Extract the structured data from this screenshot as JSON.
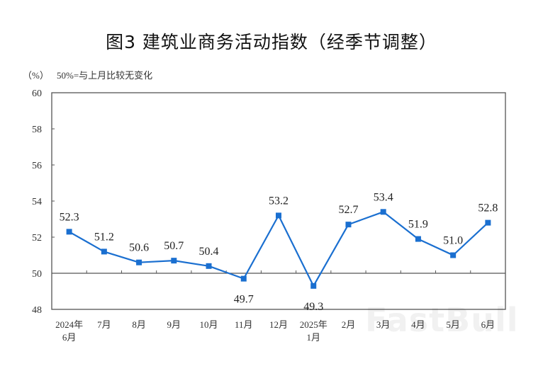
{
  "title": "图3  建筑业商务活动指数（经季节调整）",
  "unit_label": "（%）",
  "note": "50%=与上月比较无变化",
  "watermark": "FastBull",
  "colors": {
    "line": "#1a6fd0",
    "axis": "#555555",
    "text": "#222222"
  },
  "chart_data": {
    "type": "line",
    "title": "图3  建筑业商务活动指数（经季节调整）",
    "xlabel": "",
    "ylabel": "（%）",
    "annotation": "50%=与上月比较无变化",
    "ylim": [
      48,
      60
    ],
    "yticks": [
      48,
      50,
      52,
      54,
      56,
      58,
      60
    ],
    "reference_line": 50,
    "grid": false,
    "legend": null,
    "categories": [
      "2024年\n6月",
      "7月",
      "8月",
      "9月",
      "10月",
      "11月",
      "12月",
      "2025年\n1月",
      "2月",
      "3月",
      "4月",
      "5月",
      "6月"
    ],
    "series": [
      {
        "name": "建筑业商务活动指数",
        "values": [
          52.3,
          51.2,
          50.6,
          50.7,
          50.4,
          49.7,
          53.2,
          49.3,
          52.7,
          53.4,
          51.9,
          51.0,
          52.8
        ],
        "labels": [
          "52.3",
          "51.2",
          "50.6",
          "50.7",
          "50.4",
          "49.7",
          "53.2",
          "49.3",
          "52.7",
          "53.4",
          "51.9",
          "51.0",
          "52.8"
        ],
        "label_below": [
          false,
          false,
          false,
          false,
          false,
          true,
          false,
          true,
          false,
          false,
          false,
          false,
          false
        ]
      }
    ]
  }
}
